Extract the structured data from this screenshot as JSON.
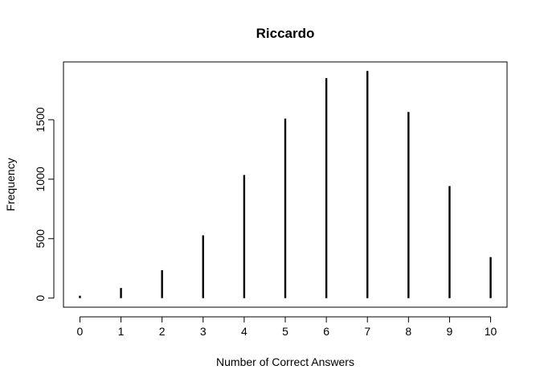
{
  "chart_data": {
    "type": "bar",
    "title": "Riccardo",
    "xlabel": "Number of Correct Answers",
    "ylabel": "Frequency",
    "categories": [
      "0",
      "1",
      "2",
      "3",
      "4",
      "5",
      "6",
      "7",
      "8",
      "9",
      "10"
    ],
    "x": [
      0,
      1,
      2,
      3,
      4,
      5,
      6,
      7,
      8,
      9,
      10
    ],
    "values": [
      20,
      85,
      235,
      528,
      1035,
      1510,
      1850,
      1910,
      1565,
      942,
      345
    ],
    "xlim": [
      -0.4,
      10.4
    ],
    "ylim": [
      -76.4,
      1986.4
    ],
    "x_ticks": [
      "0",
      "1",
      "2",
      "3",
      "4",
      "5",
      "6",
      "7",
      "8",
      "9",
      "10"
    ],
    "y_ticks": [
      "0",
      "500",
      "1000",
      "1500"
    ],
    "y_tick_values": [
      0,
      500,
      1000,
      1500
    ],
    "grid": false,
    "legend": "none",
    "line_color": "#000000"
  }
}
